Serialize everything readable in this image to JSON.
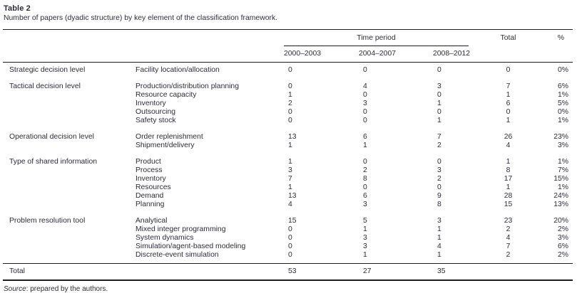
{
  "title": "Table 2",
  "caption": "Number of papers (dyadic structure) by key element of the classification framework.",
  "header": {
    "time_period_label": "Time period",
    "total_label": "Total",
    "percent_label": "%",
    "periods": [
      "2000–2003",
      "2004–2007",
      "2008–2012"
    ]
  },
  "sections": [
    {
      "category": "Strategic decision level",
      "rows": [
        {
          "element": "Facility location/allocation",
          "p1": "0",
          "p2": "0",
          "p3": "0",
          "total": "0",
          "pct": "0%"
        }
      ]
    },
    {
      "category": "Tactical decision level",
      "rows": [
        {
          "element": "Production/distribution planning",
          "p1": "0",
          "p2": "4",
          "p3": "3",
          "total": "7",
          "pct": "6%"
        },
        {
          "element": "Resource capacity",
          "p1": "1",
          "p2": "0",
          "p3": "0",
          "total": "1",
          "pct": "1%"
        },
        {
          "element": "Inventory",
          "p1": "2",
          "p2": "3",
          "p3": "1",
          "total": "6",
          "pct": "5%"
        },
        {
          "element": "Outsourcing",
          "p1": "0",
          "p2": "0",
          "p3": "0",
          "total": "0",
          "pct": "0%"
        },
        {
          "element": "Safety stock",
          "p1": "0",
          "p2": "0",
          "p3": "1",
          "total": "1",
          "pct": "1%"
        }
      ]
    },
    {
      "category": "Operational decision level",
      "rows": [
        {
          "element": "Order replenishment",
          "p1": "13",
          "p2": "6",
          "p3": "7",
          "total": "26",
          "pct": "23%"
        },
        {
          "element": "Shipment/delivery",
          "p1": "1",
          "p2": "1",
          "p3": "2",
          "total": "4",
          "pct": "3%"
        }
      ]
    },
    {
      "category": "Type of shared information",
      "rows": [
        {
          "element": "Product",
          "p1": "1",
          "p2": "0",
          "p3": "0",
          "total": "1",
          "pct": "1%"
        },
        {
          "element": "Process",
          "p1": "3",
          "p2": "2",
          "p3": "3",
          "total": "8",
          "pct": "7%"
        },
        {
          "element": "Inventory",
          "p1": "7",
          "p2": "8",
          "p3": "2",
          "total": "17",
          "pct": "15%"
        },
        {
          "element": "Resources",
          "p1": "1",
          "p2": "0",
          "p3": "0",
          "total": "1",
          "pct": "1%"
        },
        {
          "element": "Demand",
          "p1": "13",
          "p2": "6",
          "p3": "9",
          "total": "28",
          "pct": "24%"
        },
        {
          "element": "Planning",
          "p1": "4",
          "p2": "3",
          "p3": "8",
          "total": "15",
          "pct": "13%"
        }
      ]
    },
    {
      "category": "Problem resolution tool",
      "rows": [
        {
          "element": "Analytical",
          "p1": "15",
          "p2": "5",
          "p3": "3",
          "total": "23",
          "pct": "20%"
        },
        {
          "element": "Mixed integer programming",
          "p1": "0",
          "p2": "1",
          "p3": "1",
          "total": "2",
          "pct": "2%"
        },
        {
          "element": "System dynamics",
          "p1": "0",
          "p2": "3",
          "p3": "1",
          "total": "4",
          "pct": "3%"
        },
        {
          "element": "Simulation/agent-based modeling",
          "p1": "0",
          "p2": "3",
          "p3": "4",
          "total": "7",
          "pct": "6%"
        },
        {
          "element": "Discrete-event simulation",
          "p1": "0",
          "p2": "1",
          "p3": "1",
          "total": "2",
          "pct": "2%"
        }
      ]
    }
  ],
  "total_row": {
    "label": "Total",
    "p1": "53",
    "p2": "27",
    "p3": "35"
  },
  "source_note": {
    "prefix": "Source",
    "rest": ": prepared by the authors."
  }
}
